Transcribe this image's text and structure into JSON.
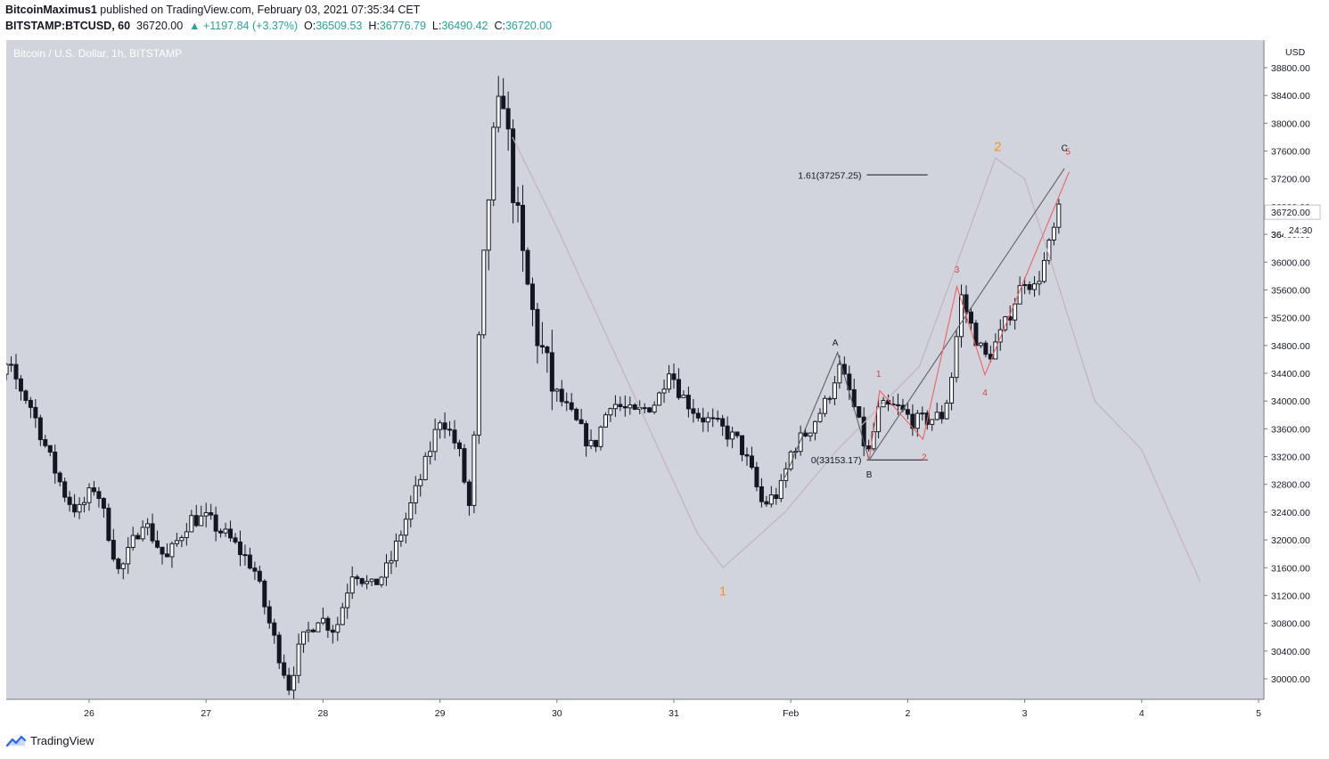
{
  "header": {
    "author": "BitcoinMaximus1",
    "published_text": "published on TradingView.com, February 03, 2021 07:35:34 CET",
    "symbol": "BITSTAMP:BTCUSD, 60",
    "price": "36720.00",
    "change": "▲ +1197.84 (+3.37%)",
    "open_label": "O:",
    "open": "36509.53",
    "high_label": "H:",
    "high": "36776.79",
    "low_label": "L:",
    "low": "36490.42",
    "close_label": "C:",
    "close": "36720.00"
  },
  "chart_title": "Bitcoin / U.S. Dollar, 1h, BITSTAMP",
  "footer": {
    "brand": "TradingView",
    "logo_icon": "tradingview-logo-icon"
  },
  "colors": {
    "plot_bg": "#d1d4dc",
    "candle": "#131722",
    "orange_label": "#f7931a",
    "red_label": "#e53935",
    "red_line": "#f06262",
    "gray_line": "#606060",
    "faint_path": "#c3b3bb",
    "price_tag": "#131722"
  },
  "chart_data": {
    "type": "candlestick",
    "title": "Bitcoin / U.S. Dollar, 1h, BITSTAMP",
    "currency_label": "USD",
    "ylim": [
      29650,
      39150
    ],
    "xlim": [
      25.0,
      5.0
    ],
    "y_ticks": [
      "38800.00",
      "38400.00",
      "38000.00",
      "37600.00",
      "37200.00",
      "36800.00",
      "36400.00",
      "36000.00",
      "35600.00",
      "35200.00",
      "34800.00",
      "34400.00",
      "34000.00",
      "33600.00",
      "33200.00",
      "32800.00",
      "32400.00",
      "32000.00",
      "31600.00",
      "31200.00",
      "30800.00",
      "30400.00",
      "30000.00"
    ],
    "y_tick_values": [
      38800,
      38400,
      38000,
      37600,
      37200,
      36800,
      36400,
      36000,
      35600,
      35200,
      34800,
      34400,
      34000,
      33600,
      33200,
      32800,
      32400,
      32000,
      31600,
      31200,
      30800,
      30400,
      30000
    ],
    "x_ticks": [
      "26",
      "27",
      "28",
      "29",
      "30",
      "31",
      "Feb",
      "2",
      "3",
      "4",
      "5"
    ],
    "x_tick_days": [
      26,
      27,
      28,
      29,
      30,
      31,
      32,
      33,
      34,
      35,
      36
    ],
    "last_price_tag": "36720.00",
    "countdown_tag": "24:30",
    "partial_tick_label": "364",
    "anchor_points": [
      {
        "t": 25.0,
        "v": 33550
      },
      {
        "t": 25.35,
        "v": 34500
      },
      {
        "t": 25.55,
        "v": 33900
      },
      {
        "t": 25.7,
        "v": 33200
      },
      {
        "t": 25.85,
        "v": 32600
      },
      {
        "t": 25.95,
        "v": 32400
      },
      {
        "t": 26.1,
        "v": 32800
      },
      {
        "t": 26.3,
        "v": 31500
      },
      {
        "t": 26.5,
        "v": 32300
      },
      {
        "t": 26.7,
        "v": 31700
      },
      {
        "t": 26.9,
        "v": 32300
      },
      {
        "t": 27.05,
        "v": 32300
      },
      {
        "t": 27.25,
        "v": 32000
      },
      {
        "t": 27.45,
        "v": 31600
      },
      {
        "t": 27.6,
        "v": 30700
      },
      {
        "t": 27.75,
        "v": 29900
      },
      {
        "t": 27.85,
        "v": 30500
      },
      {
        "t": 28.0,
        "v": 30900
      },
      {
        "t": 28.15,
        "v": 30700
      },
      {
        "t": 28.3,
        "v": 31600
      },
      {
        "t": 28.45,
        "v": 31300
      },
      {
        "t": 28.6,
        "v": 31600
      },
      {
        "t": 28.75,
        "v": 32300
      },
      {
        "t": 28.9,
        "v": 33000
      },
      {
        "t": 29.05,
        "v": 33800
      },
      {
        "t": 29.2,
        "v": 33300
      },
      {
        "t": 29.3,
        "v": 32400
      },
      {
        "t": 29.4,
        "v": 35500
      },
      {
        "t": 29.48,
        "v": 37500
      },
      {
        "t": 29.58,
        "v": 38500
      },
      {
        "t": 29.65,
        "v": 37300
      },
      {
        "t": 29.75,
        "v": 36000
      },
      {
        "t": 29.85,
        "v": 35100
      },
      {
        "t": 30.0,
        "v": 34200
      },
      {
        "t": 30.2,
        "v": 33700
      },
      {
        "t": 30.35,
        "v": 33300
      },
      {
        "t": 30.5,
        "v": 34000
      },
      {
        "t": 30.7,
        "v": 33800
      },
      {
        "t": 30.9,
        "v": 34000
      },
      {
        "t": 31.0,
        "v": 34500
      },
      {
        "t": 31.1,
        "v": 34100
      },
      {
        "t": 31.25,
        "v": 33800
      },
      {
        "t": 31.45,
        "v": 33600
      },
      {
        "t": 31.6,
        "v": 33400
      },
      {
        "t": 31.7,
        "v": 33000
      },
      {
        "t": 31.8,
        "v": 32500
      },
      {
        "t": 31.95,
        "v": 32700
      },
      {
        "t": 32.05,
        "v": 33300
      },
      {
        "t": 32.2,
        "v": 33600
      },
      {
        "t": 32.35,
        "v": 34000
      },
      {
        "t": 32.45,
        "v": 34500
      },
      {
        "t": 32.55,
        "v": 34100
      },
      {
        "t": 32.7,
        "v": 33200
      },
      {
        "t": 32.8,
        "v": 33900
      },
      {
        "t": 32.95,
        "v": 33900
      },
      {
        "t": 33.1,
        "v": 33700
      },
      {
        "t": 33.25,
        "v": 33750
      },
      {
        "t": 33.35,
        "v": 33800
      },
      {
        "t": 33.42,
        "v": 34400
      },
      {
        "t": 33.5,
        "v": 35500
      },
      {
        "t": 33.58,
        "v": 35100
      },
      {
        "t": 33.65,
        "v": 34800
      },
      {
        "t": 33.72,
        "v": 34600
      },
      {
        "t": 33.85,
        "v": 35000
      },
      {
        "t": 33.97,
        "v": 35500
      },
      {
        "t": 34.05,
        "v": 35800
      },
      {
        "t": 34.12,
        "v": 35600
      },
      {
        "t": 34.2,
        "v": 35950
      },
      {
        "t": 34.3,
        "v": 36500
      },
      {
        "t": 34.32,
        "v": 36720
      }
    ],
    "annotations": {
      "fib_161": {
        "text": "1.61(37257.25)",
        "value": 37257.25
      },
      "fib_0": {
        "text": "0(33153.17)",
        "value": 33153.17
      },
      "wave_labels_orange": [
        {
          "text": "1",
          "t": 31.42,
          "v": 31200
        },
        {
          "text": "2",
          "t": 33.77,
          "v": 37600
        }
      ],
      "wave_labels_red": [
        {
          "text": "1",
          "t": 32.75,
          "v": 34350
        },
        {
          "text": "2",
          "t": 33.14,
          "v": 33150
        },
        {
          "text": "3",
          "t": 33.42,
          "v": 35850
        },
        {
          "text": "4",
          "t": 33.66,
          "v": 34080
        },
        {
          "text": "5",
          "t": 34.37,
          "v": 37550
        }
      ],
      "abc_labels": [
        {
          "text": "A",
          "t": 32.38,
          "v": 34800
        },
        {
          "text": "B",
          "t": 32.67,
          "v": 32900
        },
        {
          "text": "C",
          "t": 34.34,
          "v": 37600
        }
      ]
    }
  }
}
